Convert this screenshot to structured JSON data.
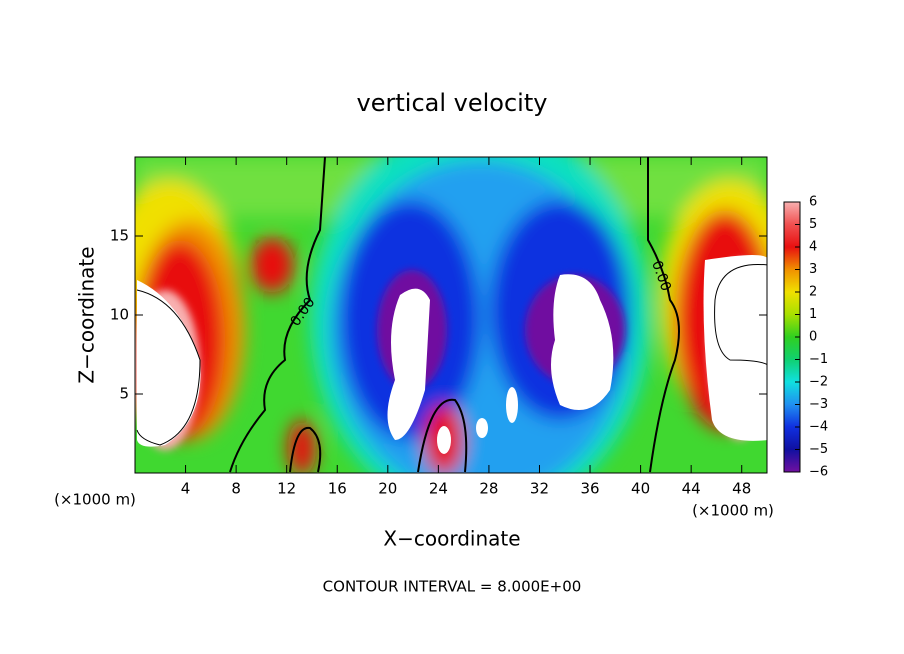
{
  "chart_data": {
    "type": "heatmap",
    "title": "vertical velocity",
    "x_label": "X−coordinate",
    "y_label": "Z−coordinate",
    "x_unit": "(×1000 m)",
    "xlim": [
      0,
      50
    ],
    "xticks": [
      4,
      8,
      12,
      16,
      20,
      24,
      28,
      32,
      36,
      40,
      44,
      48
    ],
    "ylim": [
      0,
      20
    ],
    "yticks": [
      5,
      10,
      15
    ],
    "colorbar_ticks": [
      6,
      5,
      4,
      3,
      2,
      1,
      0,
      {
        "value": -1,
        "label": "−1"
      },
      {
        "value": -2,
        "label": "−2"
      },
      {
        "value": -3,
        "label": "−3"
      },
      {
        "value": -4,
        "label": "−4"
      },
      {
        "value": -5,
        "label": "−5"
      },
      {
        "value": -6,
        "label": "−6"
      }
    ],
    "colorbar_colors": [
      "#f8b0b0",
      "#f05050",
      "#e81010",
      "#f09000",
      "#f0e000",
      "#a8e000",
      "#30d020",
      "#10d070",
      "#10e0e0",
      "#2090f0",
      "#1030e0",
      "#1010a0",
      "#7010a0"
    ],
    "contour_labels": [
      "0.00",
      "0.00"
    ],
    "annotation": "CONTOUR INTERVAL = 8.000E+00"
  }
}
